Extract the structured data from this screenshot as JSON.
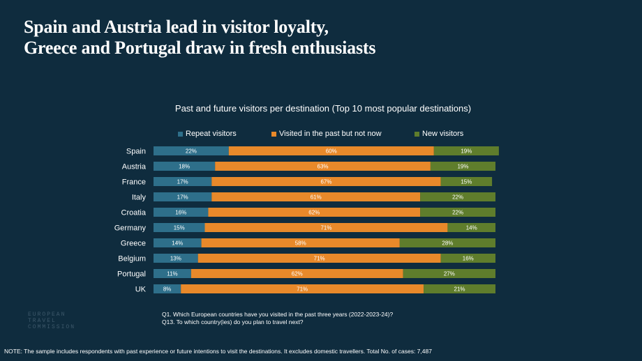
{
  "title_lines": [
    "Spain and Austria lead in visitor loyalty,",
    "Greece and Portugal draw in fresh enthusiasts"
  ],
  "logo_lines": [
    "EUROPEAN",
    "TRAVEL",
    "COMMISSION"
  ],
  "questions": [
    "Q1. Which European countries have you visited in the past three years (2022-2023-24)?",
    "Q13. To which country(ies) do you plan to travel next?"
  ],
  "note": "NOTE: The sample includes respondents with past experience or future intentions to visit the destinations. It excludes domestic travellers. Total No. of cases: 7,487",
  "colors": {
    "background": "#0f2c3e",
    "repeat": "#2e6f8a",
    "past": "#e8892a",
    "new": "#5f7d2c"
  },
  "chart_data": {
    "type": "bar",
    "orientation": "horizontal",
    "stacked": true,
    "title": "Past and future visitors per destination  (Top 10 most popular destinations)",
    "legend_position": "top",
    "grid": false,
    "categories": [
      "Spain",
      "Austria",
      "France",
      "Italy",
      "Croatia",
      "Germany",
      "Greece",
      "Belgium",
      "Portugal",
      "UK"
    ],
    "series": [
      {
        "name": "Repeat visitors",
        "color": "#2e6f8a",
        "values": [
          22,
          18,
          17,
          17,
          16,
          15,
          14,
          13,
          11,
          8
        ]
      },
      {
        "name": "Visited in the past but not now",
        "color": "#e8892a",
        "values": [
          60,
          63,
          67,
          61,
          62,
          71,
          58,
          71,
          62,
          71
        ]
      },
      {
        "name": "New visitors",
        "color": "#5f7d2c",
        "values": [
          19,
          19,
          15,
          22,
          22,
          14,
          28,
          16,
          27,
          21
        ]
      }
    ],
    "value_suffix": "%"
  }
}
